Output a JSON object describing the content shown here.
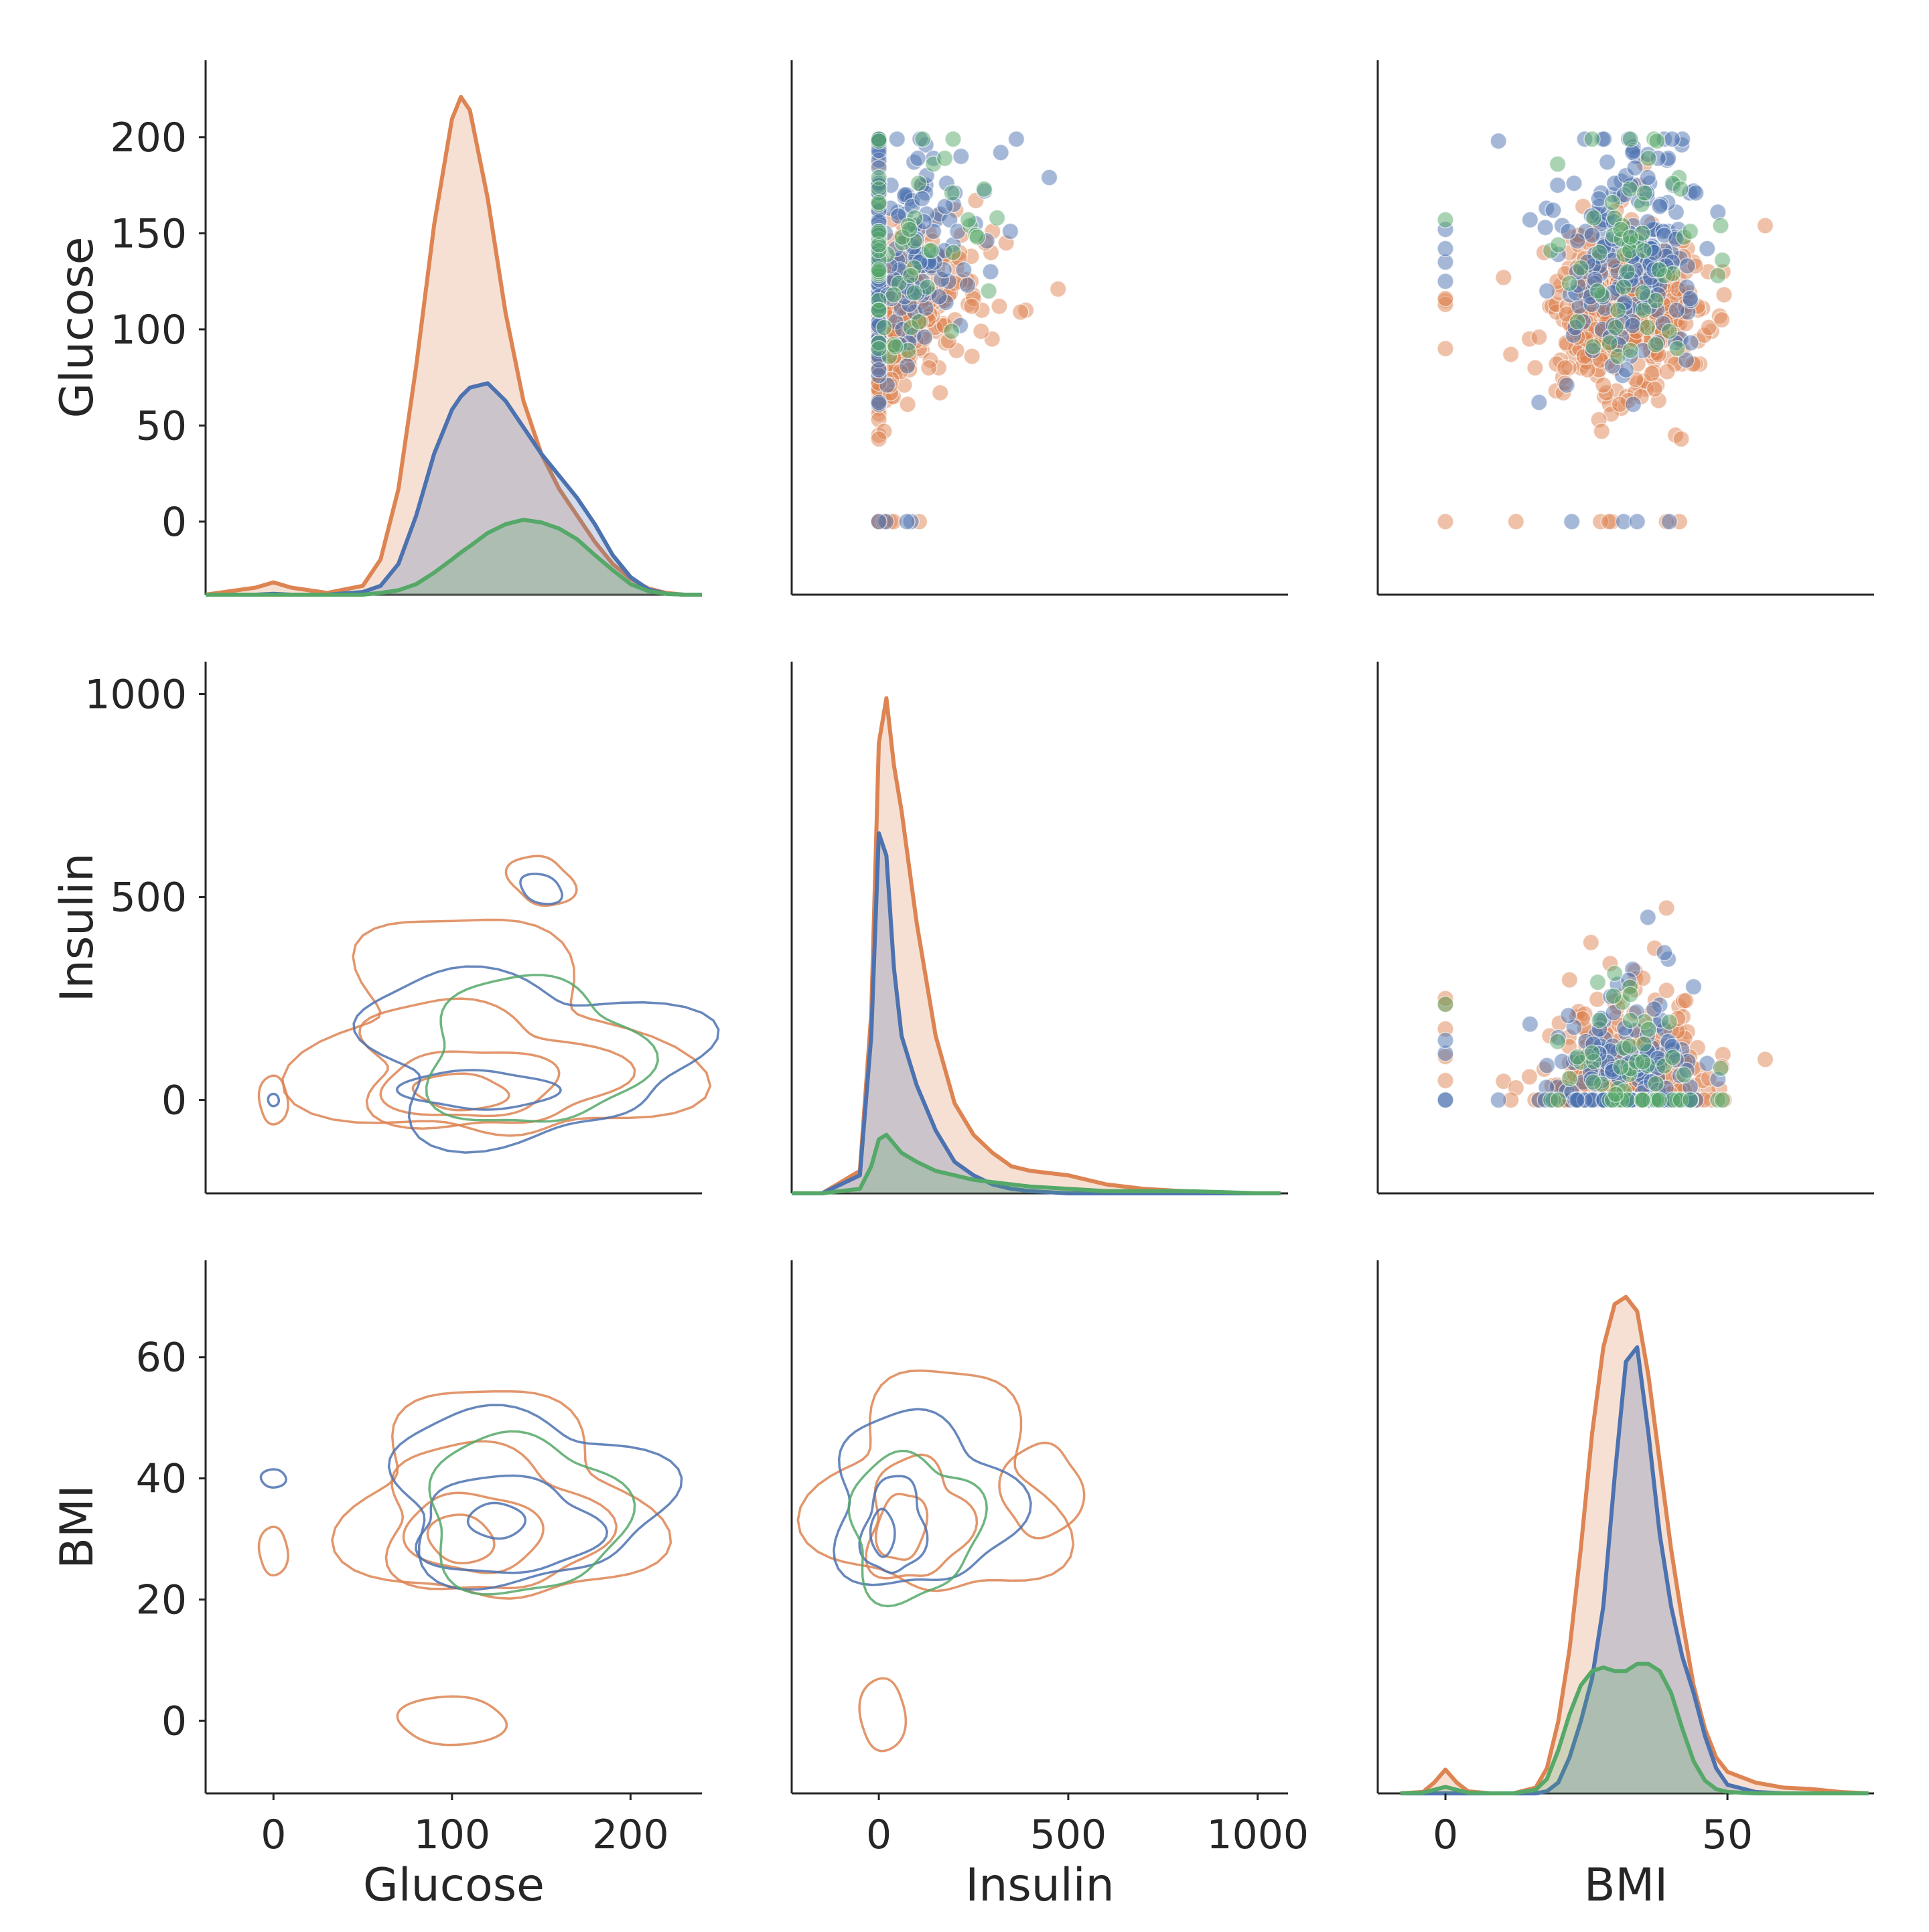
{
  "chart_data": {
    "type": "scatter",
    "kind": "pairplot",
    "variables": [
      "Glucose",
      "Insulin",
      "BMI"
    ],
    "hue_colors": [
      "#dd8452",
      "#4c72b0",
      "#55a868"
    ],
    "legend": "none",
    "grid": false,
    "axes": {
      "Glucose": {
        "label": "Glucose",
        "lim": [
          -38,
          240
        ],
        "ticks": [
          0,
          50,
          100,
          150,
          200
        ],
        "xticks": [
          0,
          100,
          200
        ]
      },
      "Insulin": {
        "label": "Insulin",
        "lim": [
          -230,
          1080
        ],
        "ticks": [
          0,
          500,
          1000
        ],
        "xticks": [
          0,
          500,
          1000
        ]
      },
      "BMI": {
        "label": "BMI",
        "lim": [
          -12,
          76
        ],
        "ticks": [
          0,
          20,
          40,
          60
        ],
        "xticks": [
          0,
          50
        ]
      }
    },
    "diagonal_kde": {
      "Glucose": {
        "x": [
          -38,
          -10,
          0,
          10,
          30,
          50,
          60,
          70,
          80,
          90,
          100,
          105,
          110,
          120,
          130,
          140,
          150,
          160,
          170,
          180,
          190,
          200,
          210,
          220,
          230,
          240
        ],
        "series": [
          {
            "values": [
              0,
              0.8,
              1.4,
              0.8,
              0.2,
              1,
              4,
              12,
              26,
              42,
              54,
              56.5,
              55,
              45,
              32,
              22,
              16,
              12,
              9,
              6,
              3.5,
              1.8,
              0.7,
              0.2,
              0,
              0
            ]
          },
          {
            "values": [
              0,
              0,
              0.1,
              0,
              0,
              0.3,
              1,
              3.5,
              9,
              16,
              21,
              22.5,
              23.5,
              24,
              22,
              19,
              16,
              13.5,
              11,
              8,
              4.5,
              2,
              0.6,
              0.1,
              0,
              0
            ]
          },
          {
            "values": [
              0,
              0,
              0,
              0,
              0,
              0,
              0.2,
              0.5,
              1.2,
              2.5,
              4,
              4.8,
              5.5,
              7,
              8,
              8.5,
              8.2,
              7.5,
              6.3,
              4.5,
              2.8,
              1.2,
              0.4,
              0.1,
              0,
              0
            ]
          }
        ]
      },
      "Insulin": {
        "x": [
          -230,
          -150,
          -50,
          -20,
          0,
          20,
          40,
          60,
          100,
          150,
          200,
          250,
          300,
          350,
          400,
          500,
          600,
          700,
          800,
          900,
          1000,
          1060
        ],
        "series": [
          {
            "values": [
              0,
              0,
              0.5,
              4,
              10,
              11,
              9.5,
              8.5,
              6,
              3.5,
              2,
              1.3,
              0.9,
              0.6,
              0.5,
              0.4,
              0.2,
              0.1,
              0.05,
              0,
              0,
              0
            ]
          },
          {
            "values": [
              0,
              0,
              0.4,
              3.5,
              8,
              7.5,
              5,
              3.5,
              2.4,
              1.4,
              0.7,
              0.4,
              0.2,
              0.1,
              0.05,
              0,
              0,
              0,
              0,
              0,
              0,
              0
            ]
          },
          {
            "values": [
              0,
              0,
              0.1,
              0.6,
              1.2,
              1.3,
              1.1,
              0.9,
              0.7,
              0.5,
              0.4,
              0.3,
              0.25,
              0.2,
              0.15,
              0.1,
              0.05,
              0.05,
              0.05,
              0.03,
              0,
              0
            ]
          }
        ]
      },
      "BMI": {
        "x": [
          -8,
          -4,
          -2,
          0,
          2,
          4,
          8,
          12,
          16,
          18,
          20,
          22,
          24,
          26,
          28,
          30,
          32,
          34,
          36,
          38,
          40,
          42,
          44,
          46,
          48,
          50,
          55,
          60,
          65,
          70,
          75
        ],
        "series": [
          {
            "values": [
              0,
              0.2,
              1.5,
              3.3,
              1.5,
              0.3,
              0,
              0,
              0.8,
              3.5,
              10,
              20,
              34,
              50,
              62,
              68,
              69,
              67,
              58,
              46,
              34,
              24,
              15,
              9,
              5,
              3,
              1.5,
              0.8,
              0.6,
              0.2,
              0
            ]
          },
          {
            "values": [
              0,
              0,
              0,
              0,
              0,
              0,
              0,
              0,
              0,
              0.3,
              1.5,
              5,
              10,
              16,
              26,
              44,
              60,
              62,
              50,
              36,
              26,
              19,
              14,
              8,
              3.5,
              1.2,
              0.2,
              0,
              0,
              0,
              0
            ]
          },
          {
            "values": [
              0,
              0.1,
              0.5,
              0.9,
              0.5,
              0.1,
              0,
              0,
              0.5,
              2,
              6,
              11,
              15,
              17,
              17.5,
              17,
              17,
              18,
              18,
              17,
              14,
              9,
              4.5,
              1.8,
              0.6,
              0.2,
              0,
              0,
              0,
              0,
              0
            ]
          }
        ]
      }
    },
    "scatter_alpha": 0.5
  }
}
